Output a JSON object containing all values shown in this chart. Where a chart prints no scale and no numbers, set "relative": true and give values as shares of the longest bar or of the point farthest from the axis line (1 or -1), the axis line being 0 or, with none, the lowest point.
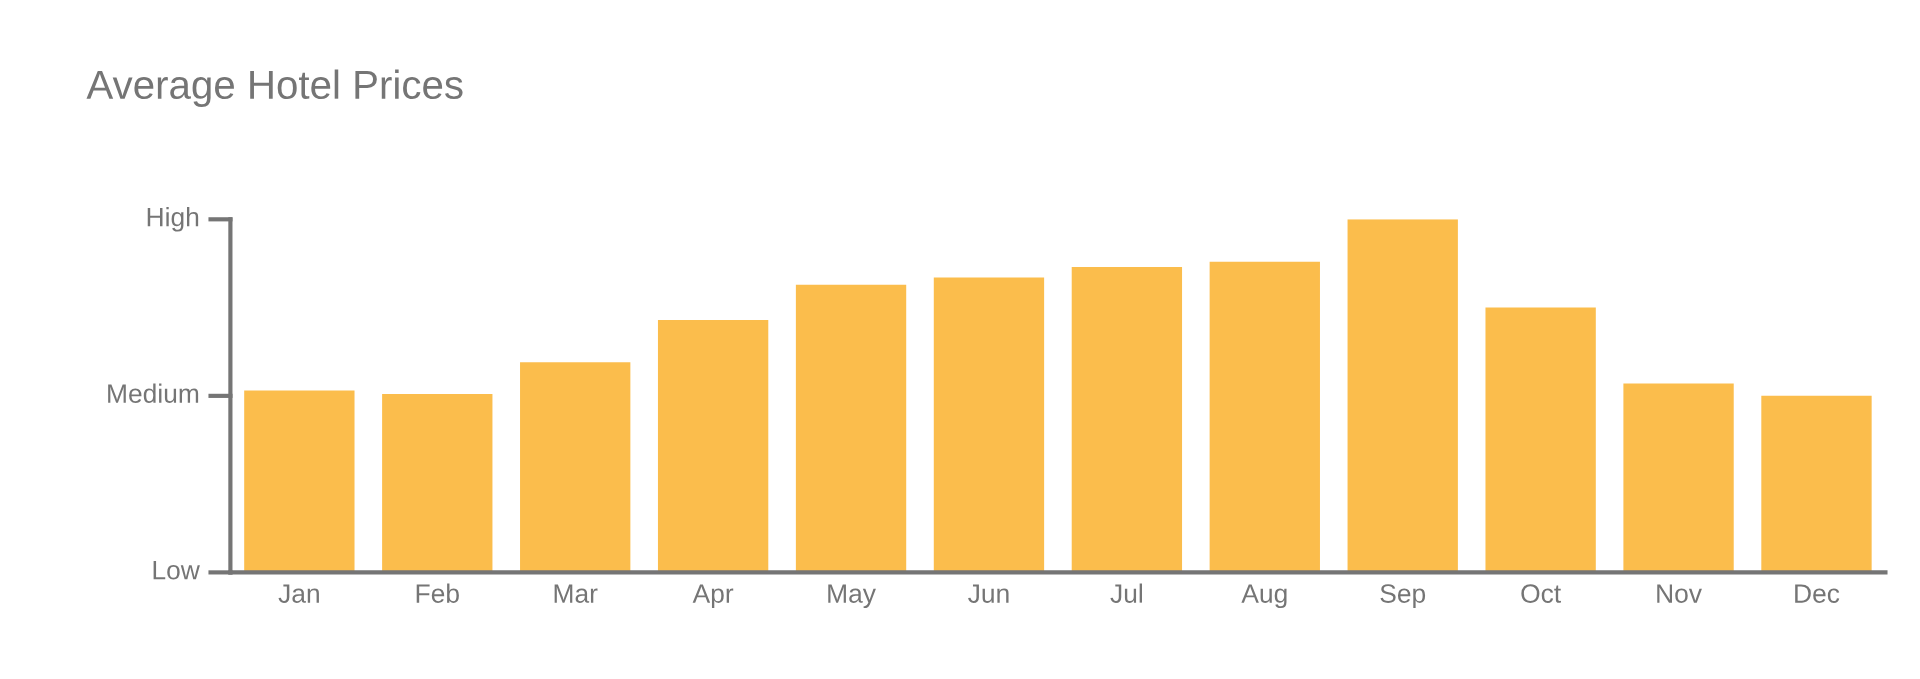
{
  "chart_data": {
    "type": "bar",
    "title": "Average Hotel Prices",
    "categories": [
      "Jan",
      "Feb",
      "Mar",
      "Apr",
      "May",
      "Jun",
      "Jul",
      "Aug",
      "Sep",
      "Oct",
      "Nov",
      "Dec"
    ],
    "values": [
      0.515,
      0.505,
      0.595,
      0.715,
      0.815,
      0.835,
      0.865,
      0.88,
      1,
      0.75,
      0.535,
      0.5
    ],
    "color": "#fbbd4c",
    "relative": true,
    "annotations": [
      "Low",
      "Medium",
      "High"
    ]
  }
}
